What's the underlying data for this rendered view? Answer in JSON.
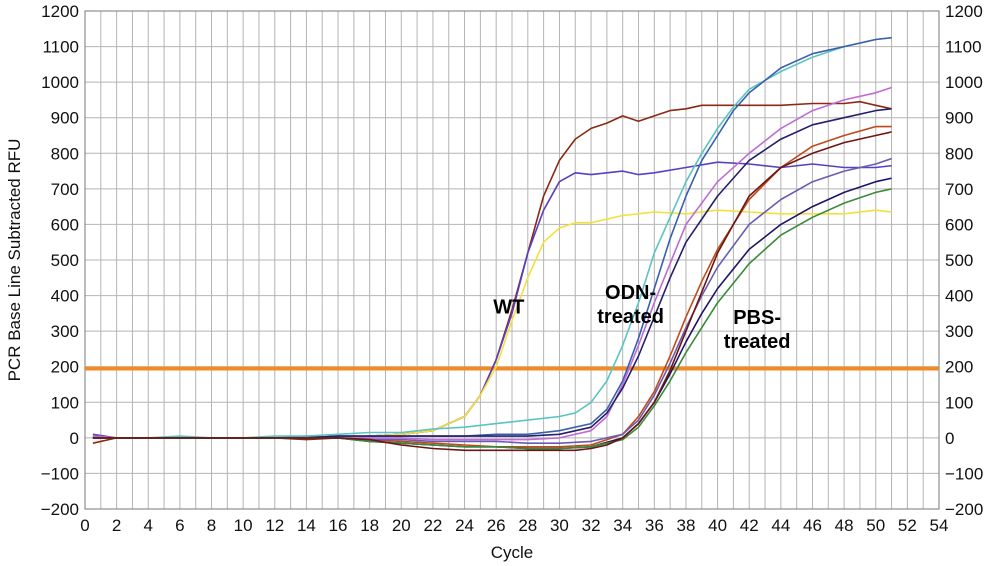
{
  "chart_data": {
    "type": "line",
    "title": "",
    "xlabel": "Cycle",
    "ylabel": "PCR Base Line Subtracted RFU",
    "xlim": [
      0,
      54
    ],
    "ylim": [
      -200,
      1200
    ],
    "x_ticks": [
      0,
      2,
      4,
      6,
      8,
      10,
      12,
      14,
      16,
      18,
      20,
      22,
      24,
      26,
      28,
      30,
      32,
      34,
      36,
      38,
      40,
      42,
      44,
      46,
      48,
      50,
      52,
      54
    ],
    "x_minor_step": 1,
    "y_ticks": [
      -200,
      -100,
      0,
      100,
      200,
      300,
      400,
      500,
      600,
      700,
      800,
      900,
      1000,
      1100,
      1200
    ],
    "y_labels_both_sides": true,
    "grid": true,
    "threshold": {
      "value": 195,
      "color": "#f08a24"
    },
    "annotations": [
      {
        "text": "WT",
        "lines": [
          "WT"
        ],
        "x": 26.8,
        "y": 350
      },
      {
        "text": "ODN-treated",
        "lines": [
          "ODN-",
          "treated"
        ],
        "x": 34.5,
        "y": 390
      },
      {
        "text": "PBS-treated",
        "lines": [
          "PBS-",
          "treated"
        ],
        "x": 42.5,
        "y": 320
      }
    ],
    "series": [
      {
        "group": "WT",
        "color": "#8b2a14",
        "x": [
          0.5,
          2,
          4,
          6,
          8,
          10,
          12,
          14,
          16,
          18,
          20,
          22,
          24,
          25,
          26,
          27,
          28,
          29,
          30,
          31,
          32,
          33,
          34,
          35,
          36,
          37,
          38,
          39,
          40,
          42,
          44,
          46,
          48,
          49,
          50,
          51
        ],
        "values": [
          -15,
          0,
          0,
          0,
          0,
          0,
          0,
          -5,
          0,
          5,
          10,
          20,
          60,
          120,
          220,
          360,
          520,
          680,
          780,
          840,
          870,
          885,
          905,
          890,
          905,
          920,
          925,
          935,
          935,
          935,
          935,
          940,
          940,
          945,
          935,
          925
        ]
      },
      {
        "group": "WT",
        "color": "#5a3fc0",
        "x": [
          0.5,
          2,
          4,
          6,
          8,
          10,
          12,
          14,
          16,
          18,
          20,
          22,
          24,
          25,
          26,
          27,
          28,
          29,
          30,
          31,
          32,
          33,
          34,
          35,
          36,
          38,
          40,
          42,
          44,
          46,
          48,
          50,
          51
        ],
        "values": [
          10,
          0,
          0,
          0,
          0,
          0,
          0,
          5,
          0,
          5,
          10,
          20,
          60,
          120,
          220,
          350,
          520,
          640,
          720,
          745,
          740,
          745,
          750,
          740,
          745,
          760,
          775,
          770,
          760,
          770,
          760,
          760,
          765
        ]
      },
      {
        "group": "WT",
        "color": "#f5e03a",
        "x": [
          0.5,
          2,
          4,
          6,
          8,
          10,
          12,
          14,
          16,
          18,
          20,
          22,
          24,
          25,
          26,
          27,
          28,
          29,
          30,
          31,
          32,
          33,
          34,
          35,
          36,
          38,
          40,
          42,
          44,
          46,
          48,
          50,
          51
        ],
        "values": [
          5,
          0,
          0,
          0,
          0,
          0,
          0,
          0,
          0,
          5,
          10,
          20,
          60,
          120,
          200,
          330,
          450,
          550,
          590,
          605,
          605,
          615,
          625,
          630,
          635,
          630,
          640,
          635,
          630,
          630,
          630,
          640,
          635
        ]
      },
      {
        "group": "ODN",
        "color": "#5bc4c0",
        "x": [
          0.5,
          2,
          4,
          6,
          8,
          10,
          12,
          14,
          16,
          18,
          20,
          22,
          24,
          26,
          28,
          30,
          31,
          32,
          33,
          34,
          35,
          36,
          37,
          38,
          39,
          40,
          41,
          42,
          44,
          46,
          48,
          50,
          51
        ],
        "values": [
          5,
          0,
          0,
          5,
          0,
          0,
          5,
          5,
          10,
          15,
          15,
          25,
          30,
          40,
          50,
          60,
          70,
          100,
          160,
          260,
          380,
          520,
          620,
          720,
          800,
          870,
          930,
          980,
          1030,
          1070,
          1100,
          1120,
          1125
        ]
      },
      {
        "group": "ODN",
        "color": "#3a5fb0",
        "x": [
          0.5,
          2,
          4,
          6,
          8,
          10,
          12,
          14,
          16,
          18,
          20,
          22,
          24,
          26,
          28,
          30,
          32,
          33,
          34,
          35,
          36,
          37,
          38,
          39,
          40,
          41,
          42,
          44,
          46,
          48,
          50,
          51
        ],
        "values": [
          5,
          0,
          0,
          0,
          0,
          0,
          0,
          0,
          5,
          5,
          5,
          5,
          5,
          10,
          10,
          20,
          40,
          80,
          160,
          280,
          420,
          560,
          680,
          780,
          850,
          920,
          970,
          1040,
          1080,
          1100,
          1120,
          1125
        ]
      },
      {
        "group": "ODN",
        "color": "#c06ad4",
        "x": [
          0.5,
          2,
          4,
          6,
          8,
          10,
          12,
          14,
          16,
          18,
          20,
          22,
          24,
          26,
          28,
          30,
          32,
          33,
          34,
          35,
          36,
          37,
          38,
          40,
          42,
          44,
          46,
          48,
          50,
          51
        ],
        "values": [
          5,
          0,
          0,
          0,
          0,
          0,
          0,
          0,
          0,
          0,
          0,
          -5,
          -5,
          -5,
          -5,
          0,
          20,
          60,
          150,
          260,
          380,
          490,
          600,
          720,
          800,
          870,
          920,
          950,
          970,
          985
        ]
      },
      {
        "group": "ODN",
        "color": "#26206a",
        "x": [
          0.5,
          2,
          4,
          6,
          8,
          10,
          12,
          14,
          16,
          18,
          20,
          22,
          24,
          26,
          28,
          30,
          32,
          33,
          34,
          35,
          36,
          37,
          38,
          40,
          42,
          44,
          46,
          48,
          50,
          51
        ],
        "values": [
          0,
          0,
          0,
          0,
          0,
          0,
          0,
          0,
          5,
          5,
          5,
          5,
          5,
          5,
          5,
          10,
          30,
          70,
          140,
          230,
          340,
          450,
          550,
          680,
          780,
          840,
          880,
          900,
          920,
          925
        ]
      },
      {
        "group": "PBS",
        "color": "#c04a1a",
        "x": [
          0.5,
          2,
          4,
          6,
          8,
          10,
          12,
          14,
          16,
          18,
          20,
          22,
          24,
          26,
          28,
          30,
          32,
          34,
          35,
          36,
          37,
          38,
          39,
          40,
          42,
          44,
          46,
          48,
          50,
          51
        ],
        "values": [
          0,
          0,
          0,
          0,
          0,
          0,
          0,
          0,
          0,
          -5,
          -10,
          -15,
          -20,
          -25,
          -25,
          -25,
          -20,
          10,
          60,
          130,
          230,
          340,
          440,
          530,
          670,
          760,
          820,
          850,
          875,
          875
        ]
      },
      {
        "group": "PBS",
        "color": "#6a5cb0",
        "x": [
          0.5,
          2,
          4,
          6,
          8,
          10,
          12,
          14,
          16,
          18,
          20,
          22,
          24,
          26,
          28,
          30,
          32,
          34,
          35,
          36,
          37,
          38,
          39,
          40,
          42,
          44,
          46,
          48,
          50,
          51
        ],
        "values": [
          0,
          0,
          0,
          0,
          0,
          0,
          0,
          0,
          0,
          -5,
          -5,
          -10,
          -10,
          -10,
          -15,
          -15,
          -10,
          10,
          50,
          120,
          210,
          310,
          400,
          480,
          600,
          670,
          720,
          750,
          770,
          785
        ]
      },
      {
        "group": "PBS",
        "color": "#1c1468",
        "x": [
          0.5,
          2,
          4,
          6,
          8,
          10,
          12,
          14,
          16,
          18,
          20,
          22,
          24,
          26,
          28,
          30,
          32,
          34,
          35,
          36,
          37,
          38,
          39,
          40,
          42,
          44,
          46,
          48,
          50,
          51
        ],
        "values": [
          0,
          0,
          0,
          0,
          0,
          0,
          0,
          0,
          0,
          -10,
          -15,
          -20,
          -25,
          -25,
          -30,
          -30,
          -25,
          0,
          40,
          100,
          180,
          270,
          350,
          420,
          530,
          600,
          650,
          690,
          720,
          730
        ]
      },
      {
        "group": "PBS",
        "color": "#3a8a3a",
        "x": [
          0.5,
          2,
          4,
          6,
          8,
          10,
          12,
          14,
          16,
          18,
          20,
          22,
          24,
          26,
          28,
          30,
          32,
          34,
          35,
          36,
          37,
          38,
          39,
          40,
          42,
          44,
          46,
          48,
          50,
          51
        ],
        "values": [
          0,
          0,
          0,
          0,
          0,
          0,
          0,
          0,
          0,
          -10,
          -15,
          -20,
          -25,
          -25,
          -30,
          -30,
          -25,
          -5,
          30,
          90,
          160,
          240,
          310,
          380,
          490,
          570,
          620,
          660,
          690,
          700
        ]
      },
      {
        "group": "PBS",
        "color": "#6b1515",
        "x": [
          0.5,
          2,
          4,
          6,
          8,
          10,
          12,
          14,
          16,
          18,
          20,
          22,
          24,
          26,
          28,
          30,
          31,
          32,
          33,
          34,
          35,
          36,
          37,
          38,
          39,
          40,
          42,
          44,
          46,
          48,
          50,
          51
        ],
        "values": [
          0,
          0,
          0,
          0,
          0,
          0,
          0,
          0,
          0,
          -5,
          -20,
          -30,
          -35,
          -35,
          -35,
          -35,
          -35,
          -30,
          -20,
          0,
          40,
          100,
          190,
          300,
          410,
          520,
          680,
          760,
          800,
          830,
          850,
          860
        ]
      }
    ]
  }
}
